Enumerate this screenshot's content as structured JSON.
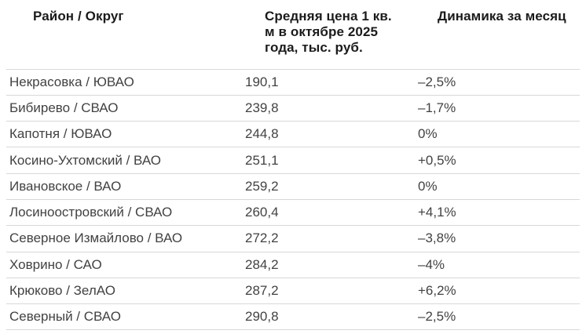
{
  "table": {
    "columns": [
      {
        "id": "district",
        "label": "Район / Округ",
        "lines": [
          "Район / Округ"
        ]
      },
      {
        "id": "price",
        "label": "Средняя цена 1 кв. м в октябре 2025 года, тыс. руб.",
        "lines": [
          "Средняя цена 1 кв.",
          "м в октябре 2025",
          "года, тыс. руб."
        ]
      },
      {
        "id": "change",
        "label": "Динамика за месяц",
        "lines": [
          "Динамика за месяц"
        ]
      }
    ],
    "rows": [
      {
        "district": "Некрасовка / ЮВАО",
        "price": "190,1",
        "change": "–2,5%"
      },
      {
        "district": "Бибирево / СВАО",
        "price": "239,8",
        "change": "–1,7%"
      },
      {
        "district": "Капотня / ЮВАО",
        "price": "244,8",
        "change": "0%"
      },
      {
        "district": "Косино-Ухтомский / ВАО",
        "price": "251,1",
        "change": "+0,5%"
      },
      {
        "district": "Ивановское / ВАО",
        "price": "259,2",
        "change": "0%"
      },
      {
        "district": "Лосиноостровский / СВАО",
        "price": "260,4",
        "change": "+4,1%"
      },
      {
        "district": "Северное Измайлово / ВАО",
        "price": "272,2",
        "change": "–3,8%"
      },
      {
        "district": "Ховрино / САО",
        "price": "284,2",
        "change": "–4%"
      },
      {
        "district": "Крюково / ЗелАО",
        "price": "287,2",
        "change": "+6,2%"
      },
      {
        "district": "Северный / СВАО",
        "price": "290,8",
        "change": "–2,5%"
      }
    ]
  },
  "chart_data": {
    "type": "table",
    "title": "",
    "columns": [
      "Район / Округ",
      "Средняя цена 1 кв. м в октябре 2025 года, тыс. руб.",
      "Динамика за месяц"
    ],
    "rows": [
      [
        "Некрасовка / ЮВАО",
        "190,1",
        "–2,5%"
      ],
      [
        "Бибирево / СВАО",
        "239,8",
        "–1,7%"
      ],
      [
        "Капотня / ЮВАО",
        "244,8",
        "0%"
      ],
      [
        "Косино-Ухтомский / ВАО",
        "251,1",
        "+0,5%"
      ],
      [
        "Ивановское / ВАО",
        "259,2",
        "0%"
      ],
      [
        "Лосиноостровский / СВАО",
        "260,4",
        "+4,1%"
      ],
      [
        "Северное Измайлово / ВАО",
        "272,2",
        "–3,8%"
      ],
      [
        "Ховрино / САО",
        "284,2",
        "–4%"
      ],
      [
        "Крюково / ЗелАО",
        "287,2",
        "+6,2%"
      ],
      [
        "Северный / СВАО",
        "290,8",
        "–2,5%"
      ]
    ],
    "price_values_thousand_rub": [
      190.1,
      239.8,
      244.8,
      251.1,
      259.2,
      260.4,
      272.2,
      284.2,
      287.2,
      290.8
    ],
    "change_percent_values": [
      -2.5,
      -1.7,
      0,
      0.5,
      0,
      4.1,
      -3.8,
      -4,
      6.2,
      -2.5
    ]
  },
  "colors": {
    "header_text": "#1b1b1b",
    "body_text": "#424242",
    "divider": "#d8d8d8",
    "background": "#ffffff"
  }
}
